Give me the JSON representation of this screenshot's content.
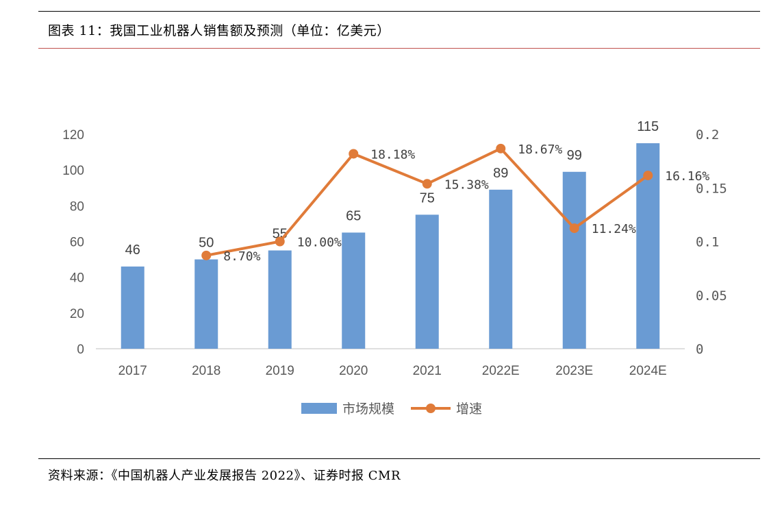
{
  "figure": {
    "title": "图表 11：我国工业机器人销售额及预测（单位：亿美元）",
    "source": "资料来源：《中国机器人产业发展报告 2022》、证券时报 CMR"
  },
  "colors": {
    "bar": "#6a9bd3",
    "line": "#e07b39",
    "title_rule": "#c0504d",
    "axis": "#bfbfbf",
    "text": "#595959"
  },
  "chart_data": {
    "type": "bar",
    "categories": [
      "2017",
      "2018",
      "2019",
      "2020",
      "2021",
      "2022E",
      "2023E",
      "2024E"
    ],
    "series": [
      {
        "name": "市场规模",
        "type": "bar",
        "axis": "left",
        "values": [
          46,
          50,
          55,
          65,
          75,
          89,
          99,
          115
        ],
        "labels": [
          "46",
          "50",
          "55",
          "65",
          "75",
          "89",
          "99",
          "115"
        ]
      },
      {
        "name": "增速",
        "type": "line",
        "axis": "right",
        "values": [
          null,
          0.087,
          0.1,
          0.1818,
          0.1538,
          0.1867,
          0.1124,
          0.1616
        ],
        "labels": [
          "",
          "8.70%",
          "10.00%",
          "18.18%",
          "15.38%",
          "18.67%",
          "11.24%",
          "16.16%"
        ]
      }
    ],
    "y_left": {
      "ylim": [
        0,
        120
      ],
      "ticks": [
        "0",
        "20",
        "40",
        "60",
        "80",
        "100",
        "120"
      ]
    },
    "y_right": {
      "ylim": [
        0,
        0.2
      ],
      "ticks": [
        "0",
        "0.05",
        "0.1",
        "0.15",
        "0.2"
      ]
    },
    "legend": {
      "position": "bottom",
      "entries": [
        "市场规模",
        "增速"
      ]
    },
    "grid": false
  }
}
